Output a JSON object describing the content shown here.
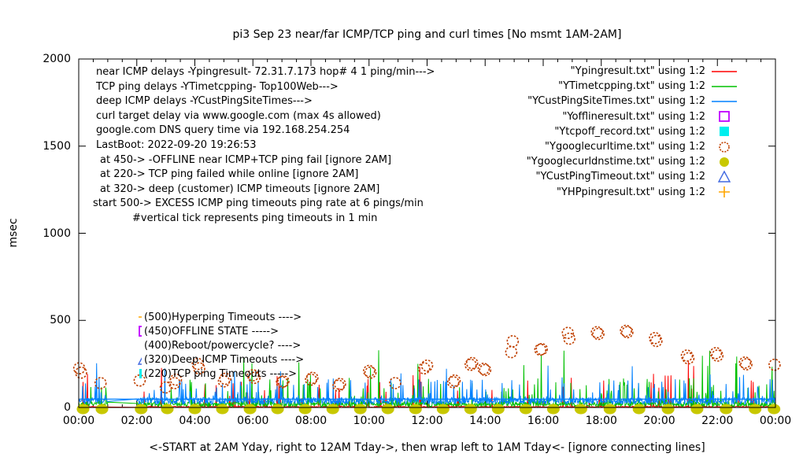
{
  "chart_data": {
    "type": "line",
    "title": "pi3 Sep 23  near/far ICMP/TCP ping and curl times [No msmt 1AM-2AM]",
    "ylabel": "msec",
    "xlabel": "<-START at 2AM Yday, right to 12AM Tday->, then wrap left to 1AM Tday<- [ignore connecting lines]",
    "xlim_hours": [
      0,
      24
    ],
    "ylim": [
      0,
      2000
    ],
    "x_tick_labels": [
      "00:00",
      "02:00",
      "04:00",
      "06:00",
      "08:00",
      "10:00",
      "12:00",
      "14:00",
      "16:00",
      "18:00",
      "20:00",
      "22:00",
      "00:00"
    ],
    "y_tick_labels": [
      "0",
      "500",
      "1000",
      "1500",
      "2000"
    ],
    "no_measurement_gap_hours": [
      1,
      2
    ],
    "grid": false,
    "legend_position": "top-right",
    "notes": [
      "near ICMP delays -Ypingresult- 72.31.7.173 hop# 4 1 ping/min--->",
      "TCP ping delays -YTimetcpping- Top100Web--->",
      "deep ICMP delays -YCustPingSiteTimes--->",
      "curl target delay via www.google.com (max 4s allowed)",
      "google.com DNS query time via 192.168.254.254",
      "LastBoot: 2022-09-20 19:26:53",
      "at 450-> -OFFLINE near ICMP+TCP ping fail [ignore 2AM]",
      "at 220-> TCP ping failed while online [ignore 2AM]",
      "at 320-> deep (customer) ICMP timeouts [ignore 2AM]",
      "start 500-> EXCESS ICMP ping timeouts ping rate at 6 pings/min",
      "#vertical tick represents ping timeouts in 1 min"
    ],
    "inplot_labels": [
      {
        "marker": "plus",
        "color": "#ffa500",
        "text": "(500)Hyperping Timeouts ---->"
      },
      {
        "marker": "open-square",
        "color": "#c000ff",
        "text": "(450)OFFLINE STATE ----->"
      },
      {
        "marker": "none",
        "color": "",
        "text": "(400)Reboot/powercycle? ---->"
      },
      {
        "marker": "open-triangle",
        "color": "#4169e1",
        "text": "(320)Deep ICMP Timeouts ---->"
      },
      {
        "marker": "filled-square",
        "color": "#00eeee",
        "text": "(220)TCP ping Timeouts ----->"
      }
    ],
    "legend": [
      {
        "label": "\"Ypingresult.txt\" using 1:2",
        "marker": "line",
        "color": "#ff0000"
      },
      {
        "label": "\"YTimetcpping.txt\" using 1:2",
        "marker": "line",
        "color": "#00c000"
      },
      {
        "label": "\"YCustPingSiteTimes.txt\" using 1:2",
        "marker": "line",
        "color": "#0080ff"
      },
      {
        "label": "\"Yofflineresult.txt\" using 1:2",
        "marker": "open-square",
        "color": "#c000ff"
      },
      {
        "label": "\"Ytcpoff_record.txt\" using 1:2",
        "marker": "filled-square",
        "color": "#00eeee"
      },
      {
        "label": "\"Ygooglecurltime.txt\" using 1:2",
        "marker": "open-circle",
        "color": "#c04000"
      },
      {
        "label": "\"Ygooglecurldnstime.txt\" using 1:2",
        "marker": "filled-circle",
        "color": "#c8c800"
      },
      {
        "label": "\"YCustPingTimeout.txt\" using 1:2",
        "marker": "open-triangle",
        "color": "#4169e1"
      },
      {
        "label": "\"YHPpingresult.txt\" using 1:2",
        "marker": "plus",
        "color": "#ffa500"
      }
    ],
    "series": [
      {
        "name": "Ypingresult.txt",
        "kind": "noise-line",
        "color": "#ff0000",
        "seed": 101,
        "base": [
          1,
          6
        ],
        "spike_prob": 0.05,
        "spike": [
          25,
          160
        ],
        "rare_prob": 0.005,
        "rare": [
          180,
          100
        ]
      },
      {
        "name": "YTimetcpping.txt",
        "kind": "noise-line",
        "color": "#00c000",
        "seed": 202,
        "base": [
          4,
          28
        ],
        "spike_prob": 0.1,
        "spike": [
          40,
          130
        ],
        "rare_prob": 0.012,
        "rare": [
          160,
          170
        ]
      },
      {
        "name": "YCustPingSiteTimes.txt",
        "kind": "noise-line",
        "color": "#0080ff",
        "seed": 303,
        "base": [
          18,
          40
        ],
        "spike_prob": 0.08,
        "spike": [
          60,
          110
        ],
        "rare_prob": 0.008,
        "rare": [
          150,
          110
        ],
        "flat_level": 48
      },
      {
        "name": "Ygooglecurltime.txt",
        "kind": "scatter",
        "marker": "open-circle",
        "color": "#c04000",
        "points": [
          [
            0.02,
            225
          ],
          [
            0.08,
            200
          ],
          [
            0.75,
            140
          ],
          [
            2.1,
            155
          ],
          [
            3.0,
            115
          ],
          [
            3.3,
            140
          ],
          [
            3.35,
            160
          ],
          [
            4.1,
            250
          ],
          [
            4.15,
            225
          ],
          [
            5.0,
            150
          ],
          [
            5.05,
            165
          ],
          [
            6.0,
            185
          ],
          [
            6.05,
            170
          ],
          [
            7.0,
            145
          ],
          [
            7.05,
            150
          ],
          [
            8.0,
            160
          ],
          [
            8.05,
            170
          ],
          [
            8.95,
            125
          ],
          [
            9.0,
            135
          ],
          [
            10.0,
            210
          ],
          [
            10.05,
            200
          ],
          [
            10.9,
            140
          ],
          [
            11.9,
            225
          ],
          [
            12.0,
            240
          ],
          [
            12.9,
            145
          ],
          [
            12.95,
            155
          ],
          [
            13.5,
            245
          ],
          [
            13.55,
            255
          ],
          [
            13.95,
            222
          ],
          [
            14.0,
            215
          ],
          [
            14.9,
            318
          ],
          [
            14.95,
            380
          ],
          [
            15.9,
            332
          ],
          [
            15.95,
            335
          ],
          [
            16.85,
            428
          ],
          [
            16.9,
            395
          ],
          [
            17.85,
            432
          ],
          [
            17.9,
            422
          ],
          [
            18.85,
            440
          ],
          [
            18.9,
            432
          ],
          [
            19.85,
            398
          ],
          [
            19.9,
            382
          ],
          [
            20.95,
            298
          ],
          [
            21.0,
            282
          ],
          [
            21.95,
            312
          ],
          [
            22.0,
            298
          ],
          [
            22.95,
            258
          ],
          [
            23.0,
            248
          ],
          [
            23.97,
            245
          ]
        ]
      },
      {
        "name": "Ygooglecurldnstime.txt",
        "kind": "scatter-bottom",
        "marker": "filled-circle",
        "color": "#c8c800",
        "value": 0,
        "hours": [
          0.15,
          0.8,
          2.15,
          3.05,
          4.0,
          4.95,
          5.9,
          6.85,
          7.8,
          8.75,
          9.7,
          10.65,
          11.6,
          12.55,
          13.5,
          14.45,
          15.4,
          16.35,
          17.3,
          18.3,
          19.3,
          20.3,
          21.3,
          22.3,
          23.3,
          23.95
        ]
      }
    ]
  }
}
